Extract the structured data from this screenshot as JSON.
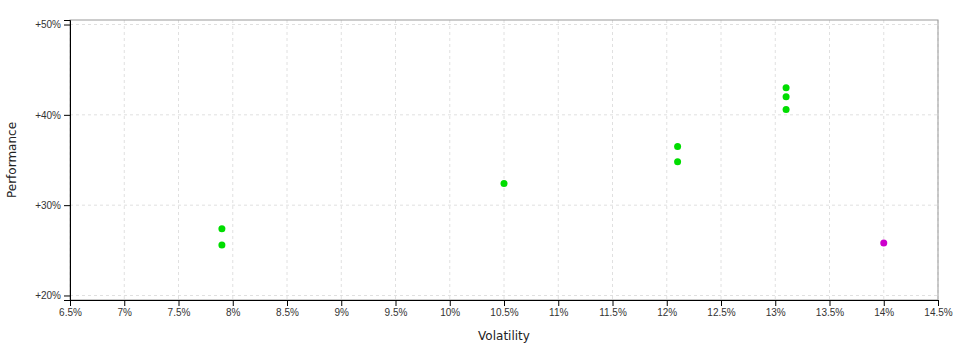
{
  "chart_data": {
    "type": "scatter",
    "xlabel": "Volatility",
    "ylabel": "Performance",
    "xlim": [
      0.065,
      0.145
    ],
    "ylim": [
      0.195,
      0.505
    ],
    "xticks": [
      {
        "value": 0.065,
        "label": "6.5%"
      },
      {
        "value": 0.07,
        "label": "7%"
      },
      {
        "value": 0.075,
        "label": "7.5%"
      },
      {
        "value": 0.08,
        "label": "8%"
      },
      {
        "value": 0.085,
        "label": "8.5%"
      },
      {
        "value": 0.09,
        "label": "9%"
      },
      {
        "value": 0.095,
        "label": "9.5%"
      },
      {
        "value": 0.1,
        "label": "10%"
      },
      {
        "value": 0.105,
        "label": "10.5%"
      },
      {
        "value": 0.11,
        "label": "11%"
      },
      {
        "value": 0.115,
        "label": "11.5%"
      },
      {
        "value": 0.12,
        "label": "12%"
      },
      {
        "value": 0.125,
        "label": "12.5%"
      },
      {
        "value": 0.13,
        "label": "13%"
      },
      {
        "value": 0.135,
        "label": "13.5%"
      },
      {
        "value": 0.14,
        "label": "14%"
      },
      {
        "value": 0.145,
        "label": "14.5%"
      }
    ],
    "yticks": [
      {
        "value": 0.2,
        "label": "+20%"
      },
      {
        "value": 0.3,
        "label": "+30%"
      },
      {
        "value": 0.4,
        "label": "+40%"
      },
      {
        "value": 0.5,
        "label": "+50%"
      }
    ],
    "grid": true,
    "series": [
      {
        "color": "#00dd00",
        "x": [
          0.079,
          0.079,
          0.105,
          0.121,
          0.121,
          0.131,
          0.131,
          0.131
        ],
        "values": [
          0.274,
          0.256,
          0.324,
          0.365,
          0.348,
          0.43,
          0.42,
          0.406
        ]
      },
      {
        "color": "#cc00cc",
        "x": [
          0.14
        ],
        "values": [
          0.258
        ]
      }
    ]
  }
}
